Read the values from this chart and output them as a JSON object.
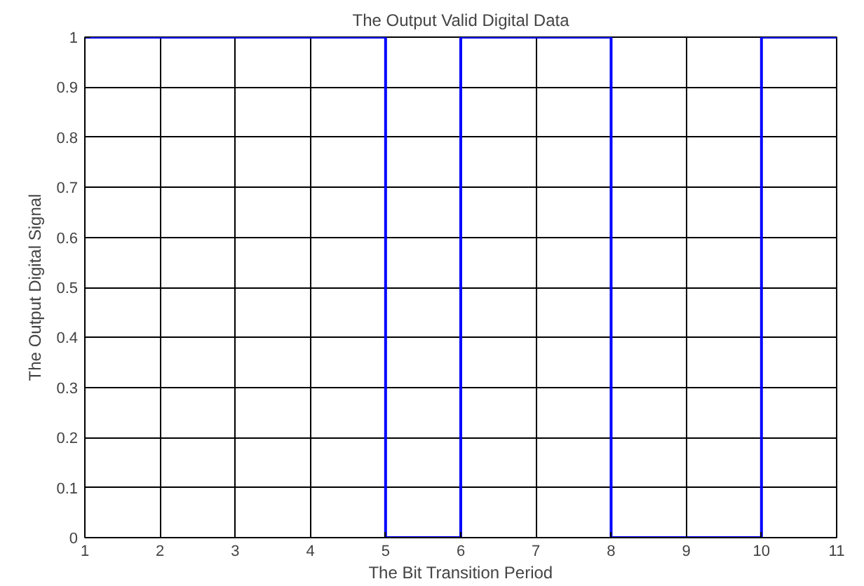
{
  "chart_data": {
    "type": "step",
    "title": "The Output Valid Digital Data",
    "xlabel": "The Bit Transition Period",
    "ylabel": "The Output Digital Signal",
    "x": [
      1,
      5,
      6,
      8,
      10,
      11
    ],
    "series": [
      {
        "color": "#0000ff",
        "values": [
          1,
          0,
          1,
          0,
          1,
          1
        ]
      }
    ],
    "xlim": [
      1,
      11
    ],
    "ylim": [
      0,
      1
    ],
    "xticks": [
      1,
      2,
      3,
      4,
      5,
      6,
      7,
      8,
      9,
      10,
      11
    ],
    "yticks": [
      0,
      {
        "value": 0.1,
        "label": "0.1"
      },
      {
        "value": 0.2,
        "label": "0.2"
      },
      {
        "value": 0.3,
        "label": "0.3"
      },
      {
        "value": 0.4,
        "label": "0.4"
      },
      {
        "value": 0.5,
        "label": "0.5"
      },
      {
        "value": 0.6,
        "label": "0.6"
      },
      {
        "value": 0.7,
        "label": "0.7"
      },
      {
        "value": 0.8,
        "label": "0.8"
      },
      {
        "value": 0.9,
        "label": "0.9"
      },
      1
    ],
    "grid": true,
    "marker": "none",
    "line_style": "solid"
  }
}
